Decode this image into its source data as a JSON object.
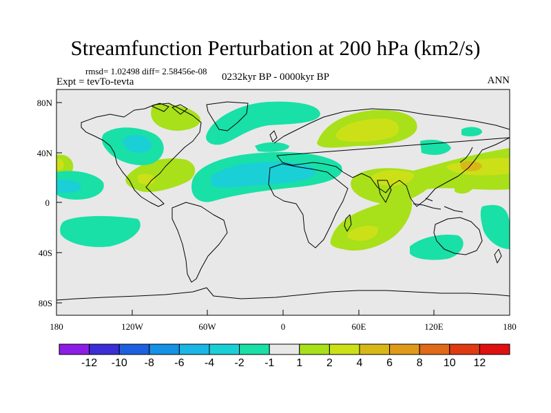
{
  "title": "Streamfunction Perturbation at 200 hPa (km2/s)",
  "stats": "rmsd= 1.02498  diff= 2.58456e-08",
  "expt": "Expt = tevTo-tevta",
  "period": "0232kyr BP - 0000kyr BP",
  "season": "ANN",
  "map": {
    "land_color": "#e8e8e8",
    "lat_ticks": [
      "80N",
      "40N",
      "0",
      "40S",
      "80S"
    ],
    "lon_ticks": [
      "180",
      "120W",
      "60W",
      "0",
      "60E",
      "120E",
      "180"
    ]
  },
  "colorbar": {
    "labels": [
      "-12",
      "-10",
      "-8",
      "-6",
      "-4",
      "-2",
      "-1",
      "1",
      "2",
      "4",
      "6",
      "8",
      "10",
      "12"
    ],
    "colors": [
      "#8c1de6",
      "#3b2ed6",
      "#1e5fe0",
      "#1591e6",
      "#19b6e6",
      "#1ad0d6",
      "#19e0a6",
      "#e8e8e8",
      "#a8e01a",
      "#cce018",
      "#d8b818",
      "#e09a1a",
      "#e06a18",
      "#e03a12",
      "#e01010"
    ]
  },
  "icons": {
    "coastline": "coastline-overlay",
    "contours": "filled-contours"
  }
}
